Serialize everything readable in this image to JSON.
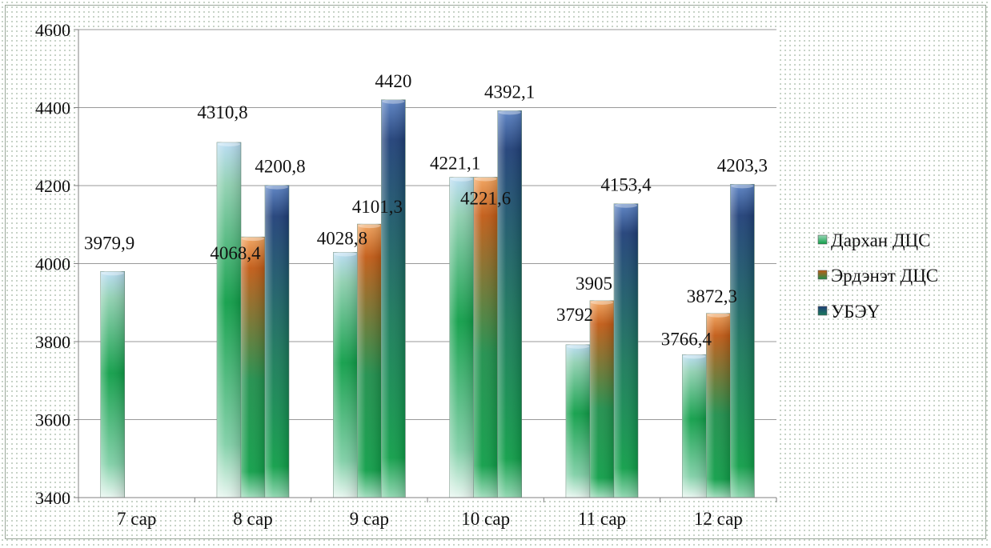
{
  "chart_data": {
    "type": "bar",
    "categories": [
      "7 сар",
      "8 сар",
      "9 сар",
      "10 сар",
      "11 сар",
      "12 сар"
    ],
    "series": [
      {
        "name": "Дархан ДЦС",
        "color": "#1a9a4a",
        "values": [
          3979.9,
          4310.8,
          4028.8,
          4221.1,
          3792,
          3766.4
        ],
        "labels": [
          "3979,9",
          "4310,8",
          "4028,8",
          "4221,1",
          "3792",
          "3766,4"
        ]
      },
      {
        "name": "Эрдэнэт ДЦС",
        "color": "#c25a14",
        "values": [
          null,
          4068.4,
          4101.3,
          4221.6,
          3905,
          3872.3
        ],
        "labels": [
          "",
          "4068,4",
          "4101,3",
          "4221,6",
          "3905",
          "3872,3"
        ]
      },
      {
        "name": "УБЭҮ",
        "color": "#1f3f78",
        "values": [
          null,
          4200.8,
          4420,
          4392.1,
          4153.4,
          4203.3
        ],
        "labels": [
          "",
          "4200,8",
          "4420",
          "4392,1",
          "4153,4",
          "4203,3"
        ]
      }
    ],
    "yticks": [
      "3400",
      "3600",
      "3800",
      "4000",
      "4200",
      "4400",
      "4600"
    ],
    "ylim": [
      3400,
      4600
    ],
    "title": "",
    "xlabel": "",
    "ylabel": "",
    "grid": true,
    "legend_position": "right"
  }
}
